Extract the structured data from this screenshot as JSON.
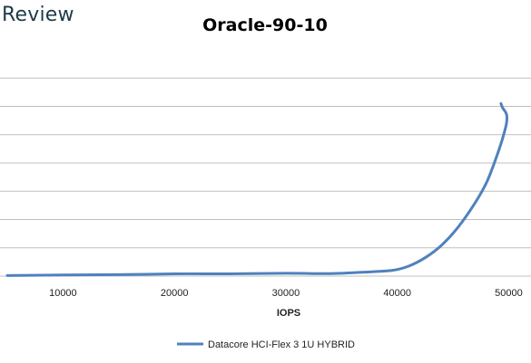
{
  "brand": {
    "text": "Review"
  },
  "chart_data": {
    "type": "line",
    "title": "Oracle-90-10",
    "xlabel": "IOPS",
    "ylabel": "",
    "xlim": [
      5000,
      52000
    ],
    "ylim": [
      0,
      8
    ],
    "x_ticks": [
      10000,
      20000,
      30000,
      40000,
      50000
    ],
    "y_ticks": [
      0,
      1,
      2,
      3,
      4,
      5,
      6,
      7
    ],
    "grid": "horizontal",
    "legend": "bottom",
    "series": [
      {
        "name": "Datacore HCI-Flex 3 1U HYBRID",
        "color": "#4f81bd",
        "points": [
          [
            5000,
            0.02
          ],
          [
            10000,
            0.04
          ],
          [
            15000,
            0.05
          ],
          [
            20000,
            0.08
          ],
          [
            25000,
            0.08
          ],
          [
            30000,
            0.1
          ],
          [
            34000,
            0.09
          ],
          [
            37000,
            0.14
          ],
          [
            39500,
            0.2
          ],
          [
            41000,
            0.35
          ],
          [
            42500,
            0.65
          ],
          [
            44000,
            1.1
          ],
          [
            45500,
            1.75
          ],
          [
            47000,
            2.6
          ],
          [
            48000,
            3.3
          ],
          [
            48800,
            4.1
          ],
          [
            49400,
            4.8
          ],
          [
            49800,
            5.4
          ],
          [
            49800,
            5.72
          ],
          [
            49450,
            5.95
          ],
          [
            49300,
            6.1
          ]
        ]
      }
    ]
  }
}
